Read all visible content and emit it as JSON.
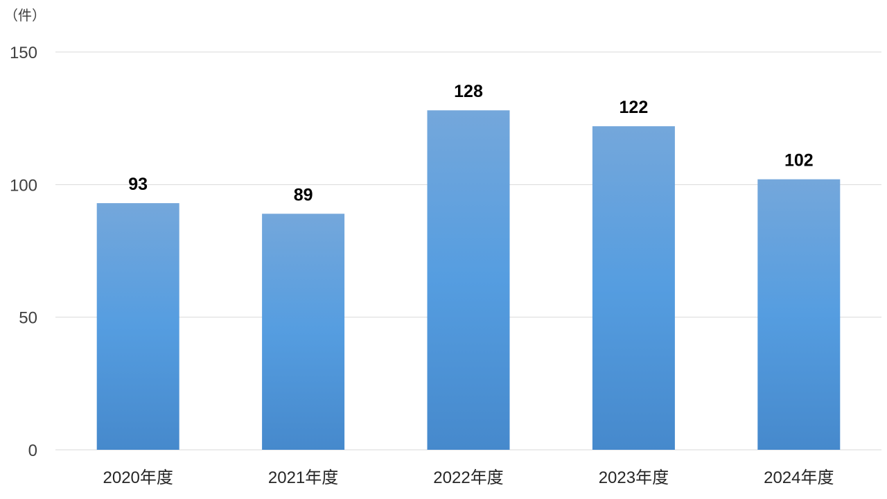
{
  "chart_data": {
    "type": "bar",
    "unit_label": "（件）",
    "categories": [
      "2020年度",
      "2021年度",
      "2022年度",
      "2023年度",
      "2024年度"
    ],
    "values": [
      93,
      89,
      128,
      122,
      102
    ],
    "yticks": [
      "0",
      "50",
      "100",
      "150"
    ],
    "ylim": [
      0,
      150
    ],
    "grid": true,
    "data_labels": true,
    "colors": {
      "bar_top": "#74a7db",
      "bar_mid": "#559de0",
      "bar_bottom": "#4689cc",
      "grid": "#d9d9d9"
    }
  }
}
